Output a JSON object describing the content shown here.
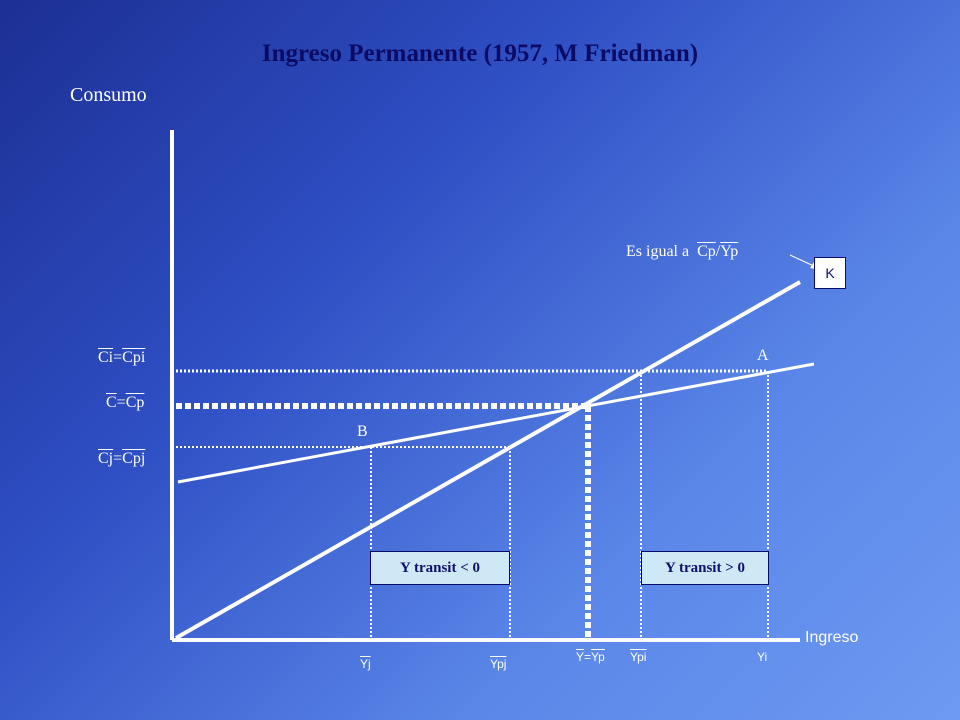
{
  "title": "Ingreso Permanente (1957, M Friedman)",
  "axes": {
    "y_label": "Consumo",
    "x_label": "Ingreso"
  },
  "y_ticks": {
    "ci": {
      "a": "Ci",
      "eq": "=",
      "b": "Cpi"
    },
    "c": {
      "a": "C",
      "eq": "=",
      "b": "Cp"
    },
    "cj": {
      "a": "Cj",
      "eq": "=",
      "b": "Cpj"
    }
  },
  "x_ticks": {
    "yj": "Yj",
    "ypj": "Ypj",
    "y_eq": {
      "a": "Y",
      "eq": "=",
      "b": "Yp"
    },
    "ypi": "Ypi",
    "yi": "Yi"
  },
  "points": {
    "a": "A",
    "b": "B"
  },
  "annotation": {
    "prefix": "Es igual a",
    "num": "Cp",
    "slash": "/",
    "den": "Yp"
  },
  "k_box": "K",
  "boxes": {
    "negative": "Y  transit  < 0",
    "positive": "Y  transit  > 0"
  },
  "colors": {
    "title": "#0b0b66",
    "lines": "#ffffff",
    "box_fill": "#cfe8f5"
  }
}
